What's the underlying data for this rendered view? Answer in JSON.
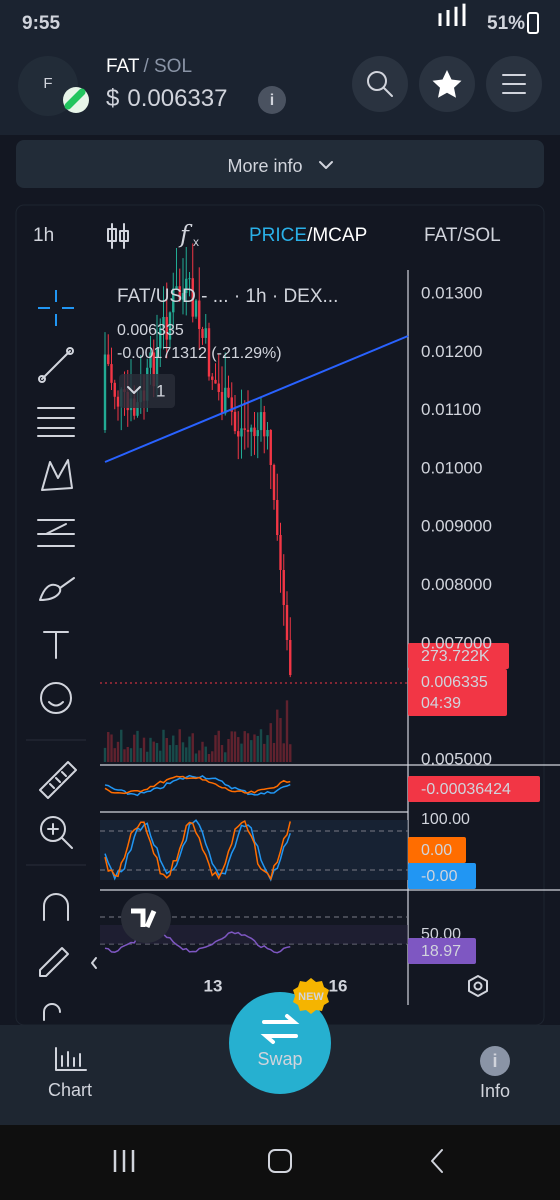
{
  "status_bar": {
    "time": "9:55",
    "battery": "51%"
  },
  "header": {
    "avatar_letter": "F",
    "base": "FAT",
    "quote": "/ SOL",
    "currency": "$",
    "price": "0.006337"
  },
  "more_info": "More info",
  "toolbar": {
    "interval": "1h",
    "price": "PRICE",
    "mcap": "/MCAP",
    "pair": "FAT/SOL"
  },
  "chart": {
    "legend": "FAT/USD - ... · 1h · DEX...",
    "last_price": "0.006335",
    "change": "-0.00171312 (-21.29%)",
    "collapsed_count": "1",
    "price_axis": [
      "0.01300",
      "0.01200",
      "0.01100",
      "0.01000",
      "0.009000",
      "0.008000",
      "0.007000",
      "0.005000"
    ],
    "volume_badge": "273.722K",
    "price_badge": "0.006335",
    "countdown": "04:39",
    "macd_badge": "-0.00036424",
    "stoch_top": "100.00",
    "stoch_k": "0.00",
    "stoch_d": "-0.00",
    "rsi_mid": "50.00",
    "rsi_badge": "18.97",
    "x_axis": [
      "13",
      "16"
    ]
  },
  "swap": {
    "label": "Swap",
    "badge": "NEW"
  },
  "bottom_nav": {
    "chart": "Chart",
    "info": "Info"
  }
}
